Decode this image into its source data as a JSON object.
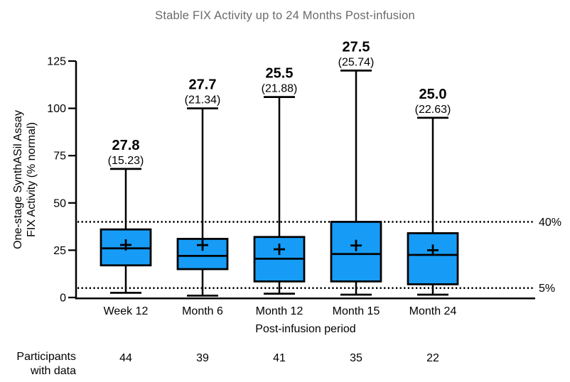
{
  "chart_data": {
    "type": "box",
    "title": "Stable FIX Activity up to 24 Months Post-infusion",
    "ylabel_lines": [
      "One-stage SynthASil Assay",
      "FIX Activity (% normal)"
    ],
    "xlabel": "Post-infusion period",
    "ylim": [
      0,
      125
    ],
    "yticks": [
      0,
      25,
      50,
      75,
      100,
      125
    ],
    "grid": false,
    "categories": [
      "Week 12",
      "Month 6",
      "Month 12",
      "Month 15",
      "Month 24"
    ],
    "series": [
      {
        "category": "Week 12",
        "mean_label": "27.8",
        "sd_label": "(15.23)",
        "mean": 27.8,
        "sd": 15.23,
        "whisker_high": 68,
        "q3": 36,
        "median": 26,
        "q1": 17,
        "whisker_low": 2.5,
        "participants": 44
      },
      {
        "category": "Month 6",
        "mean_label": "27.7",
        "sd_label": "(21.34)",
        "mean": 27.7,
        "sd": 21.34,
        "whisker_high": 100,
        "q3": 31,
        "median": 22,
        "q1": 15,
        "whisker_low": 1,
        "participants": 39
      },
      {
        "category": "Month 12",
        "mean_label": "25.5",
        "sd_label": "(21.88)",
        "mean": 25.5,
        "sd": 21.88,
        "whisker_high": 106,
        "q3": 32,
        "median": 20.5,
        "q1": 8.5,
        "whisker_low": 2,
        "participants": 41
      },
      {
        "category": "Month 15",
        "mean_label": "27.5",
        "sd_label": "(25.74)",
        "mean": 27.5,
        "sd": 25.74,
        "whisker_high": 120,
        "q3": 40,
        "median": 23,
        "q1": 8.5,
        "whisker_low": 1.5,
        "participants": 35
      },
      {
        "category": "Month 24",
        "mean_label": "25.0",
        "sd_label": "(22.63)",
        "mean": 25.0,
        "sd": 22.63,
        "whisker_high": 95,
        "q3": 34,
        "median": 22.5,
        "q1": 7,
        "whisker_low": 1.5,
        "participants": 22
      }
    ],
    "reference_lines": [
      {
        "value": 40,
        "label": "40%"
      },
      {
        "value": 5,
        "label": "5%"
      }
    ],
    "participants_row_label_lines": [
      "Participants",
      "with data"
    ],
    "colors": {
      "box_fill": "#169CF6",
      "stroke": "#000000",
      "title_color": "#6a6a6a"
    }
  }
}
